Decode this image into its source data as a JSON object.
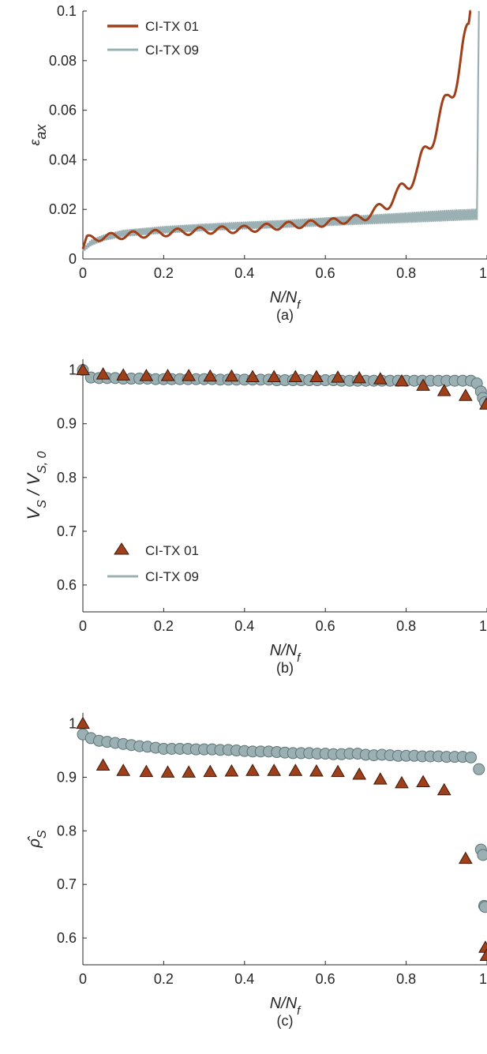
{
  "colors": {
    "ci01": "#A0401A",
    "ci09": "#9BB0B3",
    "ci09_edge": "#5E7478",
    "tri_edge": "#3A1A0C",
    "axis": "#262626"
  },
  "chart_data": [
    {
      "panel": "a",
      "caption": "(a)",
      "type": "line",
      "xlabel": "N/N_f",
      "ylabel": "ε_ax",
      "xlim": [
        0,
        1
      ],
      "ylim": [
        0,
        0.1
      ],
      "xticks": [
        "0",
        "0.2",
        "0.4",
        "0.6",
        "0.8",
        "1"
      ],
      "yticks": [
        "0",
        "0.02",
        "0.04",
        "0.06",
        "0.08",
        "0.1"
      ],
      "legend_position": "top-left",
      "series": [
        {
          "name": "CI-TX 01",
          "style": "oscillating line",
          "x": [
            0,
            0.01,
            0.03,
            0.1,
            0.2,
            0.3,
            0.4,
            0.5,
            0.6,
            0.7,
            0.72,
            0.75,
            0.78,
            0.8,
            0.83,
            0.86,
            0.88,
            0.9,
            0.92,
            0.94,
            0.955,
            0.96
          ],
          "y": [
            0.004,
            0.008,
            0.0085,
            0.0095,
            0.0105,
            0.0115,
            0.012,
            0.0135,
            0.0145,
            0.017,
            0.019,
            0.022,
            0.026,
            0.03,
            0.036,
            0.048,
            0.056,
            0.062,
            0.072,
            0.084,
            0.09,
            0.1
          ]
        },
        {
          "name": "CI-TX 09",
          "style": "dense oscillation band",
          "x": [
            0,
            0.02,
            0.05,
            0.1,
            0.2,
            0.3,
            0.4,
            0.5,
            0.6,
            0.7,
            0.8,
            0.9,
            0.97,
            0.975
          ],
          "y_lower": [
            0.003,
            0.0055,
            0.0075,
            0.0092,
            0.0105,
            0.0115,
            0.0122,
            0.0128,
            0.0135,
            0.0142,
            0.0148,
            0.0155,
            0.016,
            0.016
          ],
          "y_upper": [
            0.004,
            0.0075,
            0.0095,
            0.0115,
            0.013,
            0.014,
            0.0148,
            0.0155,
            0.0165,
            0.0175,
            0.0185,
            0.0195,
            0.02,
            0.02
          ],
          "spike": {
            "x": [
              0.976,
              0.978,
              0.98
            ],
            "y": [
              0.03,
              0.07,
              0.1
            ]
          }
        }
      ]
    },
    {
      "panel": "b",
      "caption": "(b)",
      "type": "scatter",
      "xlabel": "N/N_f",
      "ylabel": "V_S / V_S,0",
      "xlim": [
        0,
        1
      ],
      "ylim": [
        0.55,
        1.02
      ],
      "xticks": [
        "0",
        "0.2",
        "0.4",
        "0.6",
        "0.8",
        "1"
      ],
      "yticks": [
        "0.6",
        "0.7",
        "0.8",
        "0.9",
        "1"
      ],
      "legend_position": "bottom-left",
      "series": [
        {
          "name": "CI-TX 01",
          "marker": "triangle",
          "x": [
            0,
            0.05,
            0.1,
            0.157,
            0.21,
            0.262,
            0.315,
            0.368,
            0.42,
            0.473,
            0.526,
            0.578,
            0.631,
            0.684,
            0.736,
            0.789,
            0.842,
            0.894,
            0.947,
            0.998
          ],
          "y": [
            1.0,
            0.992,
            0.99,
            0.989,
            0.989,
            0.989,
            0.988,
            0.988,
            0.987,
            0.987,
            0.987,
            0.987,
            0.986,
            0.985,
            0.983,
            0.979,
            0.971,
            0.961,
            0.952,
            0.936
          ]
        },
        {
          "name": "CI-TX 09",
          "marker": "circle",
          "x": [
            0,
            0.02,
            0.04,
            0.06,
            0.08,
            0.1,
            0.12,
            0.14,
            0.16,
            0.18,
            0.2,
            0.22,
            0.24,
            0.26,
            0.28,
            0.3,
            0.32,
            0.34,
            0.36,
            0.38,
            0.4,
            0.42,
            0.44,
            0.46,
            0.48,
            0.5,
            0.52,
            0.54,
            0.56,
            0.58,
            0.6,
            0.62,
            0.64,
            0.66,
            0.68,
            0.7,
            0.72,
            0.74,
            0.76,
            0.78,
            0.8,
            0.82,
            0.84,
            0.86,
            0.88,
            0.9,
            0.92,
            0.94,
            0.96,
            0.975,
            0.985,
            0.99,
            0.995
          ],
          "y": [
            1.0,
            0.986,
            0.985,
            0.985,
            0.985,
            0.984,
            0.984,
            0.984,
            0.984,
            0.983,
            0.983,
            0.983,
            0.983,
            0.983,
            0.983,
            0.983,
            0.983,
            0.982,
            0.982,
            0.982,
            0.982,
            0.982,
            0.982,
            0.982,
            0.981,
            0.981,
            0.981,
            0.981,
            0.981,
            0.981,
            0.981,
            0.981,
            0.98,
            0.98,
            0.98,
            0.98,
            0.98,
            0.98,
            0.98,
            0.98,
            0.98,
            0.98,
            0.98,
            0.98,
            0.98,
            0.98,
            0.98,
            0.98,
            0.98,
            0.975,
            0.96,
            0.948,
            0.94
          ]
        }
      ]
    },
    {
      "panel": "c",
      "caption": "(c)",
      "type": "scatter",
      "xlabel": "N/N_f",
      "ylabel": "ρ̂_S",
      "xlim": [
        0,
        1
      ],
      "ylim": [
        0.55,
        1.02
      ],
      "xticks": [
        "0",
        "0.2",
        "0.4",
        "0.6",
        "0.8",
        "1"
      ],
      "yticks": [
        "0.6",
        "0.7",
        "0.8",
        "0.9",
        "1"
      ],
      "series": [
        {
          "name": "CI-TX 01",
          "marker": "triangle",
          "x": [
            0,
            0.05,
            0.1,
            0.157,
            0.21,
            0.262,
            0.315,
            0.368,
            0.42,
            0.473,
            0.526,
            0.578,
            0.631,
            0.684,
            0.736,
            0.789,
            0.842,
            0.894,
            0.947,
            0.996,
            0.999
          ],
          "y": [
            1.0,
            0.922,
            0.912,
            0.91,
            0.909,
            0.909,
            0.91,
            0.911,
            0.912,
            0.912,
            0.912,
            0.911,
            0.91,
            0.905,
            0.896,
            0.889,
            0.891,
            0.876,
            0.748,
            0.582,
            0.567
          ]
        },
        {
          "name": "CI-TX 09",
          "marker": "circle",
          "x": [
            0,
            0.02,
            0.04,
            0.06,
            0.08,
            0.1,
            0.12,
            0.14,
            0.16,
            0.18,
            0.2,
            0.22,
            0.24,
            0.26,
            0.28,
            0.3,
            0.32,
            0.34,
            0.36,
            0.38,
            0.4,
            0.42,
            0.44,
            0.46,
            0.48,
            0.5,
            0.52,
            0.54,
            0.56,
            0.58,
            0.6,
            0.62,
            0.64,
            0.66,
            0.68,
            0.7,
            0.72,
            0.74,
            0.76,
            0.78,
            0.8,
            0.82,
            0.84,
            0.86,
            0.88,
            0.9,
            0.92,
            0.94,
            0.96,
            0.98,
            0.985,
            0.99,
            0.993,
            0.995
          ],
          "y": [
            0.98,
            0.973,
            0.968,
            0.966,
            0.964,
            0.962,
            0.96,
            0.958,
            0.957,
            0.955,
            0.953,
            0.953,
            0.953,
            0.953,
            0.952,
            0.952,
            0.952,
            0.951,
            0.951,
            0.95,
            0.949,
            0.948,
            0.948,
            0.948,
            0.947,
            0.946,
            0.945,
            0.945,
            0.945,
            0.944,
            0.944,
            0.943,
            0.943,
            0.944,
            0.944,
            0.942,
            0.941,
            0.942,
            0.941,
            0.94,
            0.94,
            0.94,
            0.939,
            0.939,
            0.939,
            0.938,
            0.938,
            0.938,
            0.937,
            0.915,
            0.765,
            0.755,
            0.66,
            0.658
          ]
        }
      ]
    }
  ]
}
